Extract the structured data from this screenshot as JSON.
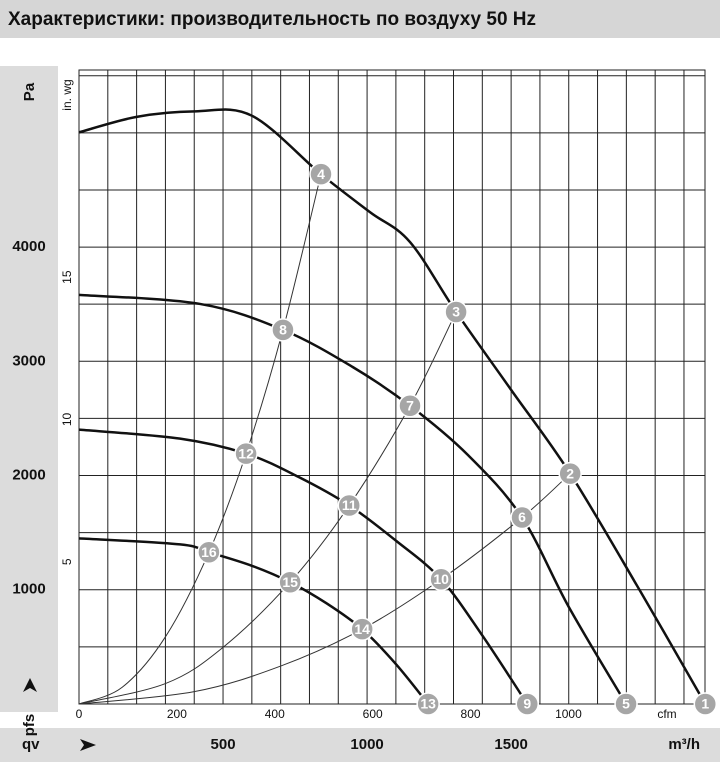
{
  "chart_data": {
    "type": "line",
    "title": "Характеристики: производительность по воздуху 50 Hz",
    "x_label": "m³/h",
    "x2_label": "cfm",
    "y_label": "Pa",
    "y2_label": "in. wg",
    "x_symbol": "qv",
    "y_symbol": "pfs",
    "xlim": [
      0,
      2173
    ],
    "xticks": [
      500,
      1000,
      1500
    ],
    "xgrid": [
      0,
      100,
      200,
      300,
      400,
      500,
      600,
      700,
      800,
      900,
      1000,
      1100,
      1200,
      1300,
      1400,
      1500,
      1600,
      1700,
      1800,
      1900,
      2000,
      2100
    ],
    "x2lim": [
      0,
      1279
    ],
    "x2ticks": [
      0,
      200,
      400,
      600,
      800,
      1000
    ],
    "ylim": [
      0,
      5550
    ],
    "yticks": [
      1000,
      2000,
      3000,
      4000
    ],
    "ygrid": [
      0,
      500,
      1000,
      1500,
      2000,
      2500,
      3000,
      3500,
      4000,
      4500,
      5000,
      5500
    ],
    "y2lim": [
      0,
      22.28
    ],
    "y2ticks": [
      5,
      10,
      15
    ],
    "grid": true,
    "series": [
      {
        "color": "#111111",
        "width": 2.5,
        "x": [
          0,
          200,
          403,
          600,
          840,
          1010,
          1149,
          1309,
          1500,
          1705,
          1950,
          2174
        ],
        "values": [
          5004,
          5140,
          5188,
          5150,
          4638,
          4306,
          4044,
          3432,
          2750,
          2017,
          980,
          0
        ]
      },
      {
        "color": "#111111",
        "width": 2.5,
        "x": [
          0,
          420,
          708,
          950,
          1149,
          1350,
          1538,
          1700,
          1899
        ],
        "values": [
          3581,
          3502,
          3275,
          2950,
          2611,
          2180,
          1633,
          850,
          0
        ]
      },
      {
        "color": "#111111",
        "width": 2.5,
        "x": [
          0,
          351,
          580,
          760,
          938,
          1100,
          1257,
          1400,
          1556
        ],
        "values": [
          2402,
          2323,
          2192,
          1990,
          1738,
          1430,
          1092,
          600,
          0
        ]
      },
      {
        "color": "#111111",
        "width": 2.5,
        "x": [
          0,
          351,
          451,
          600,
          733,
          860,
          983,
          1100,
          1212
        ],
        "values": [
          1450,
          1397,
          1328,
          1210,
          1066,
          880,
          655,
          350,
          0
        ]
      },
      {
        "color": "#333333",
        "width": 1,
        "x": [
          0,
          150,
          300,
          451,
          580,
          708,
          840
        ],
        "values": [
          0,
          147,
          588,
          1328,
          2192,
          3275,
          4638
        ]
      },
      {
        "color": "#333333",
        "width": 1,
        "x": [
          0,
          300,
          500,
          733,
          938,
          1149,
          1309
        ],
        "values": [
          0,
          179,
          496,
          1066,
          1738,
          2611,
          3432
        ]
      },
      {
        "color": "#333333",
        "width": 1,
        "x": [
          0,
          400,
          700,
          983,
          1257,
          1538,
          1705
        ],
        "values": [
          0,
          108,
          332,
          655,
          1092,
          1633,
          2017
        ]
      }
    ],
    "points": {
      "color": "#a6a6a6",
      "labels": [
        "1",
        "2",
        "3",
        "4",
        "5",
        "6",
        "7",
        "8",
        "9",
        "10",
        "11",
        "12",
        "13",
        "14",
        "15",
        "16"
      ],
      "x": [
        2174,
        1705,
        1309,
        840,
        1899,
        1538,
        1149,
        708,
        1556,
        1257,
        938,
        580,
        1212,
        983,
        733,
        451
      ],
      "values": [
        0,
        2017,
        3432,
        4638,
        0,
        1633,
        2611,
        3275,
        0,
        1092,
        1738,
        2192,
        0,
        655,
        1066,
        1328
      ]
    }
  }
}
